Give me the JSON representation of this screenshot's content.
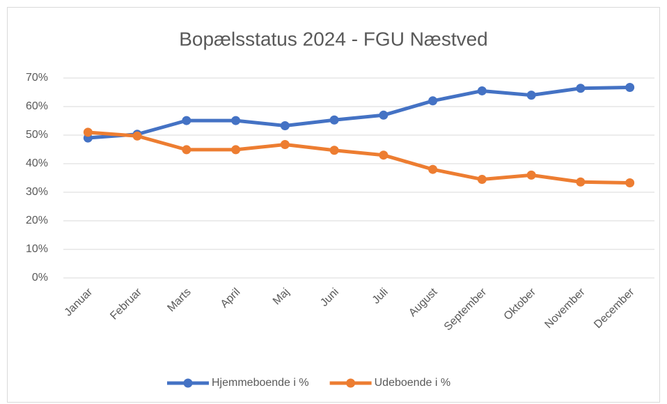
{
  "chart_data": {
    "type": "line",
    "title": "Bopælsstatus 2024 - FGU Næstved",
    "categories": [
      "Januar",
      "Februar",
      "Marts",
      "April",
      "Maj",
      "Juni",
      "Juli",
      "August",
      "September",
      "Oktober",
      "November",
      "December"
    ],
    "series": [
      {
        "name": "Hjemmeboende i %",
        "color": "#4472c4",
        "values": [
          49,
          50.3,
          55.1,
          55.1,
          53.3,
          55.3,
          57,
          62,
          65.5,
          64,
          66.4,
          66.7
        ]
      },
      {
        "name": "Udeboende i %",
        "color": "#ed7d31",
        "values": [
          51,
          49.7,
          44.9,
          44.9,
          46.7,
          44.7,
          43,
          38,
          34.5,
          36,
          33.6,
          33.3
        ]
      }
    ],
    "ylim": [
      0,
      70
    ],
    "yticks": [
      {
        "value": 0,
        "label": "0%"
      },
      {
        "value": 10,
        "label": "10%"
      },
      {
        "value": 20,
        "label": "20%"
      },
      {
        "value": 30,
        "label": "30%"
      },
      {
        "value": 40,
        "label": "40%"
      },
      {
        "value": 50,
        "label": "50%"
      },
      {
        "value": 60,
        "label": "60%"
      },
      {
        "value": 70,
        "label": "70%"
      }
    ],
    "grid": true,
    "legend": "bottom"
  }
}
